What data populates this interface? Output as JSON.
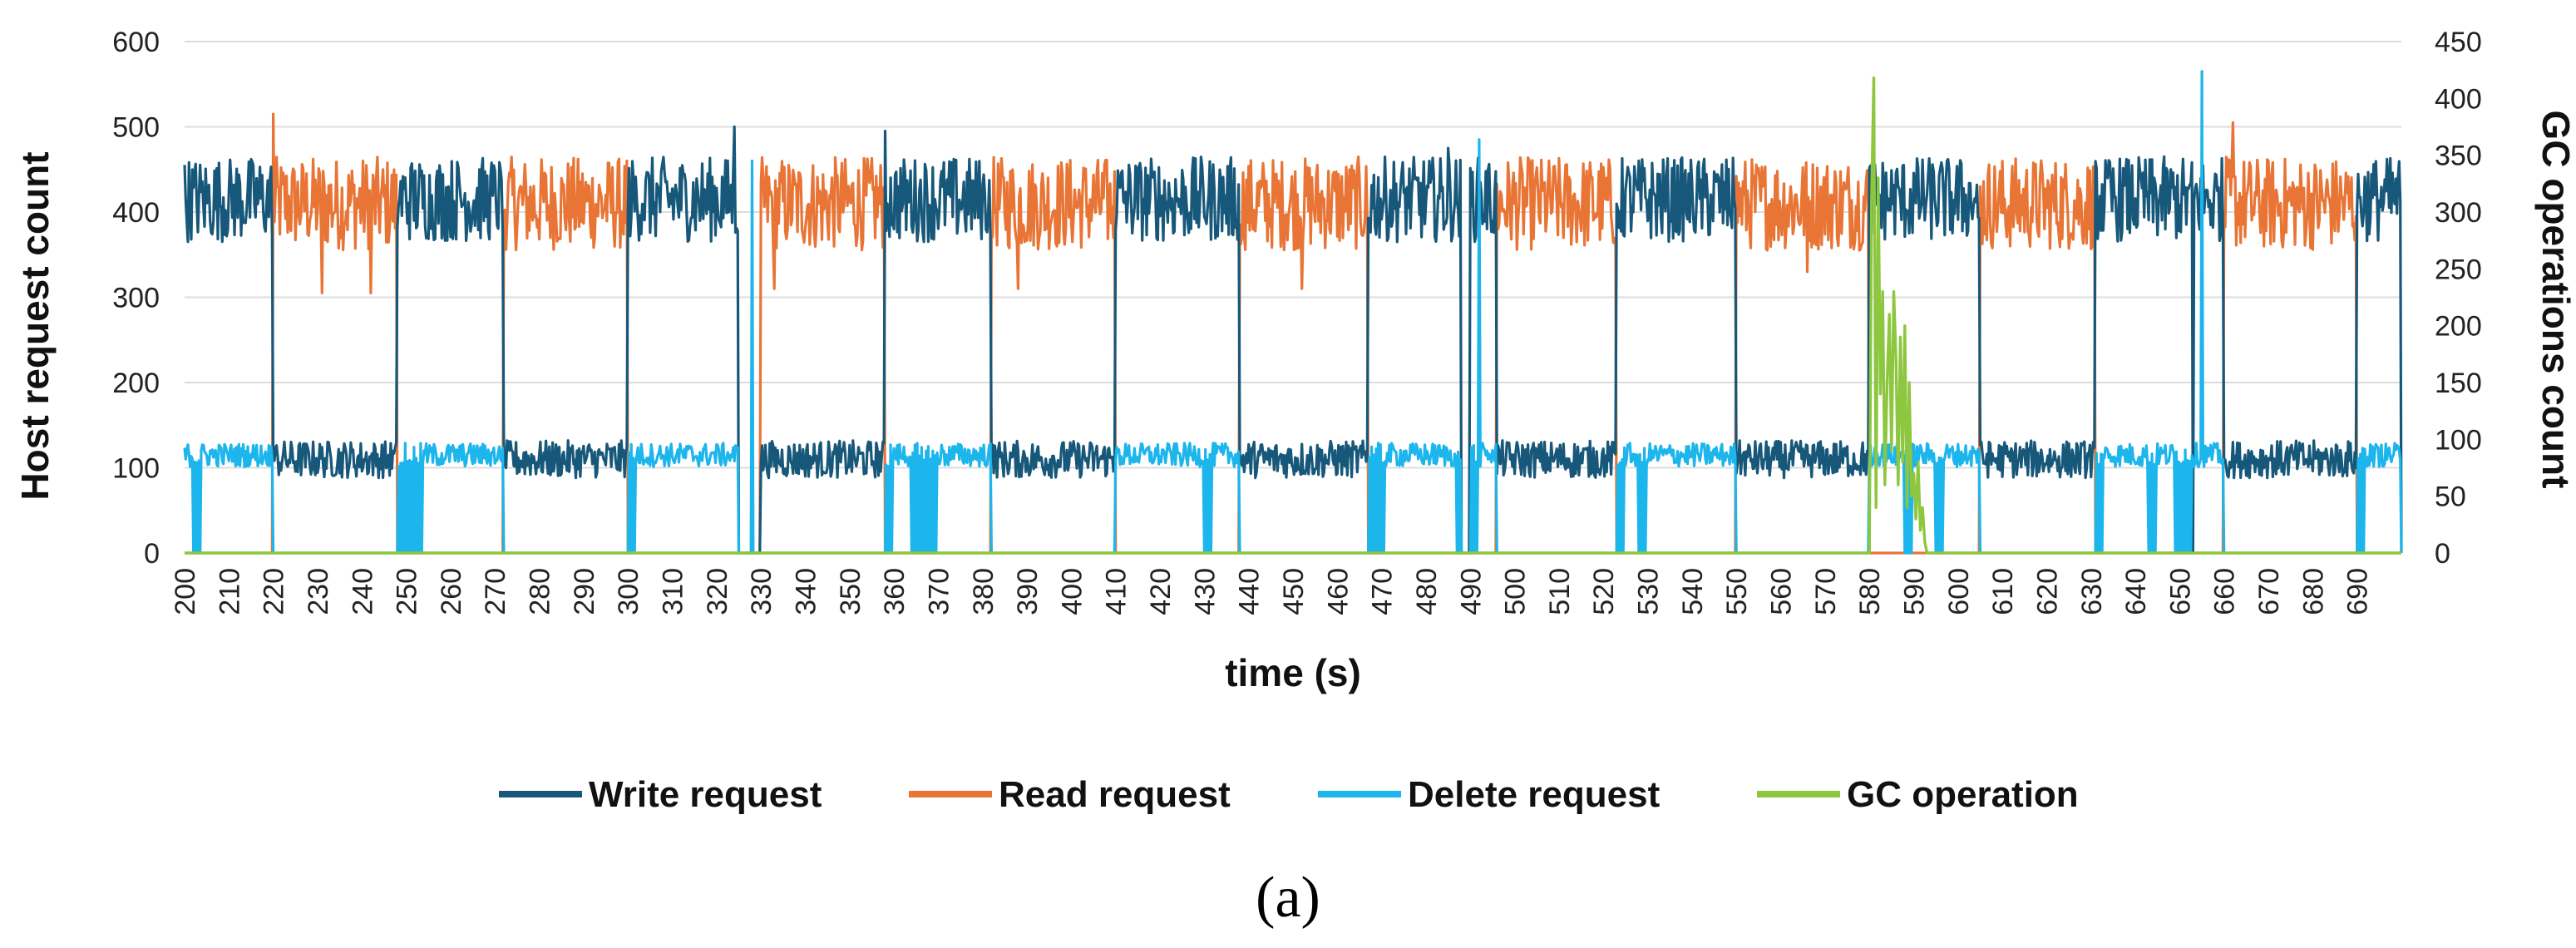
{
  "caption": "(a)",
  "chart_data": {
    "type": "line",
    "title": "",
    "xlabel": "time (s)",
    "ylabel": "Host request count",
    "y2label": "GC operations count",
    "xlim": [
      200,
      700
    ],
    "ylim": [
      0,
      600
    ],
    "y2lim": [
      0,
      450
    ],
    "x_ticks": [
      200,
      210,
      220,
      230,
      240,
      250,
      260,
      270,
      280,
      290,
      300,
      310,
      320,
      330,
      340,
      350,
      360,
      370,
      380,
      390,
      400,
      410,
      420,
      430,
      440,
      450,
      460,
      470,
      480,
      490,
      500,
      510,
      520,
      530,
      540,
      550,
      560,
      570,
      580,
      590,
      600,
      610,
      620,
      630,
      640,
      650,
      660,
      670,
      680,
      690
    ],
    "y_ticks": [
      0,
      100,
      200,
      300,
      400,
      500,
      600
    ],
    "y2_ticks": [
      0,
      50,
      100,
      150,
      200,
      250,
      300,
      350,
      400,
      450
    ],
    "grid": "horizontal",
    "legend_position": "bottom",
    "series": [
      {
        "name": "Write request",
        "color": "#17587A",
        "axis": "left",
        "segments_high": [
          [
            200,
            220
          ],
          [
            248,
            272
          ],
          [
            300,
            325
          ],
          [
            358,
            382
          ],
          [
            410,
            438
          ],
          [
            467,
            488
          ],
          [
            490,
            496
          ],
          [
            523,
            550
          ],
          [
            580,
            605
          ],
          [
            631,
            660
          ],
          [
            690,
            700
          ]
        ],
        "segments_low": [
          [
            220,
            248
          ],
          [
            272,
            300
          ],
          [
            330,
            358
          ],
          [
            382,
            410
          ],
          [
            438,
            467
          ],
          [
            496,
            523
          ],
          [
            550,
            580
          ],
          [
            605,
            631
          ],
          [
            660,
            690
          ]
        ],
        "high_level": 415,
        "low_level": 110,
        "spikes": [
          [
            324,
            500
          ],
          [
            326,
            0
          ],
          [
            358,
            495
          ],
          [
            485,
            475
          ],
          [
            653,
            0
          ]
        ]
      },
      {
        "name": "Read request",
        "color": "#E87535",
        "axis": "left",
        "segments_high": [
          [
            220,
            248
          ],
          [
            272,
            300
          ],
          [
            330,
            358
          ],
          [
            382,
            410
          ],
          [
            438,
            467
          ],
          [
            496,
            523
          ],
          [
            550,
            580
          ],
          [
            605,
            631
          ],
          [
            660,
            690
          ]
        ],
        "high_level": 410,
        "spikes": [
          [
            220,
            515
          ],
          [
            231,
            305
          ],
          [
            242,
            305
          ],
          [
            333,
            310
          ],
          [
            388,
            310
          ],
          [
            452,
            310
          ],
          [
            566,
            330
          ],
          [
            662,
            505
          ]
        ]
      },
      {
        "name": "Delete request",
        "color": "#1CB5EC",
        "axis": "left",
        "segments_high": [
          [
            200,
            220
          ],
          [
            248,
            272
          ],
          [
            300,
            325
          ],
          [
            358,
            382
          ],
          [
            410,
            438
          ],
          [
            467,
            488
          ],
          [
            490,
            496
          ],
          [
            523,
            550
          ],
          [
            580,
            605
          ],
          [
            631,
            660
          ],
          [
            690,
            700
          ]
        ],
        "level": 115,
        "drops": [
          [
            202,
            204
          ],
          [
            220,
            222
          ],
          [
            248,
            254
          ],
          [
            272,
            274
          ],
          [
            300,
            302
          ],
          [
            325,
            326
          ],
          [
            329,
            330
          ],
          [
            358,
            360
          ],
          [
            364,
            370
          ],
          [
            430,
            432
          ],
          [
            438,
            440
          ],
          [
            467,
            471
          ],
          [
            487,
            489
          ],
          [
            490,
            492
          ],
          [
            523,
            525
          ],
          [
            528,
            530
          ],
          [
            553,
            555
          ],
          [
            588,
            590
          ],
          [
            595,
            597
          ],
          [
            631,
            633
          ],
          [
            643,
            645
          ],
          [
            649,
            653
          ],
          [
            690,
            692
          ]
        ],
        "spikes": [
          [
            328,
            460
          ],
          [
            492,
            485
          ],
          [
            655,
            565
          ]
        ]
      },
      {
        "name": "GC operation",
        "color": "#8DC63F",
        "axis": "right",
        "burst": {
          "x": [
            580,
            580.5,
            581,
            581.5,
            582,
            582.5,
            583,
            583.5,
            584,
            584.5,
            585,
            585.5,
            586,
            586.5,
            587,
            587.5,
            588,
            588.5,
            589,
            589.5,
            590,
            590.5,
            591,
            591.5,
            592,
            592.5,
            593
          ],
          "y": [
            0,
            310,
            418,
            40,
            330,
            140,
            230,
            60,
            150,
            210,
            90,
            230,
            170,
            60,
            190,
            80,
            200,
            40,
            150,
            50,
            70,
            30,
            80,
            20,
            40,
            10,
            0
          ]
        }
      }
    ]
  },
  "legend": [
    {
      "label": "Write request",
      "color": "#17587A"
    },
    {
      "label": "Read request",
      "color": "#E87535"
    },
    {
      "label": "Delete request",
      "color": "#1CB5EC"
    },
    {
      "label": "GC operation",
      "color": "#8DC63F"
    }
  ]
}
